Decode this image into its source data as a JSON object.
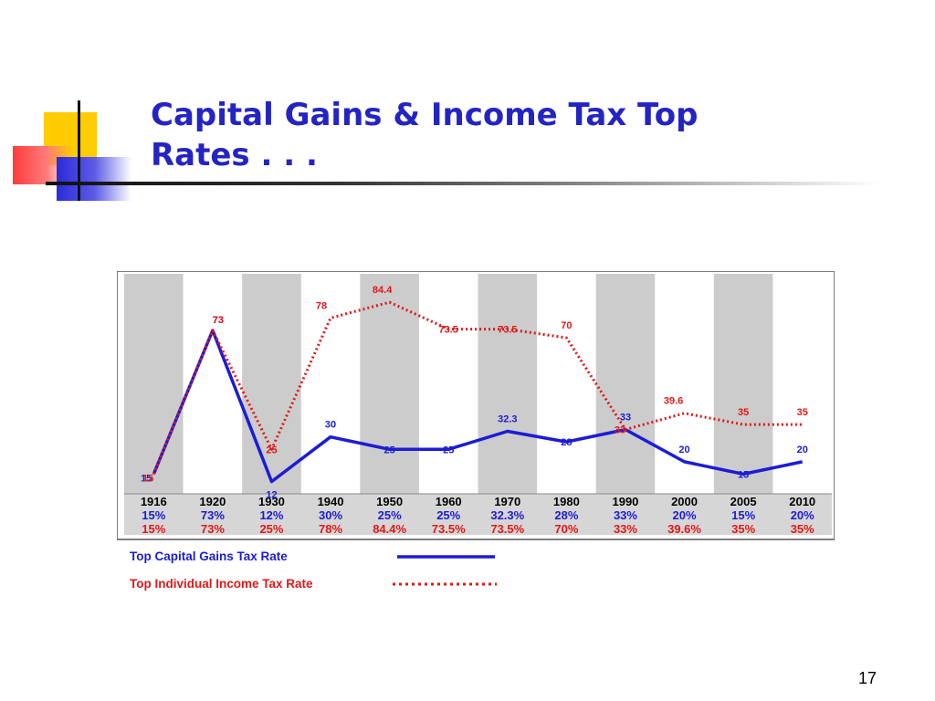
{
  "slide": {
    "title": "Capital Gains & Income Tax Top Rates . . .",
    "page_number": "17"
  },
  "colors": {
    "title": "#2424c4",
    "capital_gains": "#1c1cd6",
    "income": "#e01818",
    "stripe": "#cccccc",
    "table_bg": "#d6d6d6"
  },
  "chart_data": {
    "type": "line",
    "title": "",
    "categories": [
      "1916",
      "1920",
      "1930",
      "1940",
      "1950",
      "1960",
      "1970",
      "1980",
      "1990",
      "2000",
      "2005",
      "2010"
    ],
    "series": [
      {
        "name": "Top Capital Gains Tax Rate",
        "style": "solid",
        "values": [
          15,
          73,
          12,
          30,
          25,
          25,
          32.3,
          28,
          33,
          20,
          15,
          20
        ],
        "point_labels": [
          "15",
          "73",
          "12",
          "30",
          "25",
          "25",
          "32.3",
          "28",
          "33",
          "20",
          "15",
          "20"
        ],
        "table_labels": [
          "15%",
          "73%",
          "12%",
          "30%",
          "25%",
          "25%",
          "32.3%",
          "28%",
          "33%",
          "20%",
          "15%",
          "20%"
        ]
      },
      {
        "name": "Top Individual Income Tax Rate",
        "style": "dotted",
        "values": [
          15,
          73,
          25,
          78,
          84.4,
          73.5,
          73.5,
          70,
          33,
          39.6,
          35,
          35
        ],
        "point_labels": [
          "15",
          "73",
          "25",
          "78",
          "84.4",
          "73.5",
          "73.5",
          "70",
          "33",
          "39.6",
          "35",
          "35"
        ],
        "table_labels": [
          "15%",
          "73%",
          "25%",
          "78%",
          "84.4%",
          "73.5%",
          "73.5%",
          "70%",
          "33%",
          "39.6%",
          "35%",
          "35%"
        ]
      }
    ],
    "xlabel": "",
    "ylabel": "",
    "ylim": [
      10,
      87
    ],
    "grid": false,
    "legend": "bottom-left",
    "alternating_column_shading": true
  }
}
